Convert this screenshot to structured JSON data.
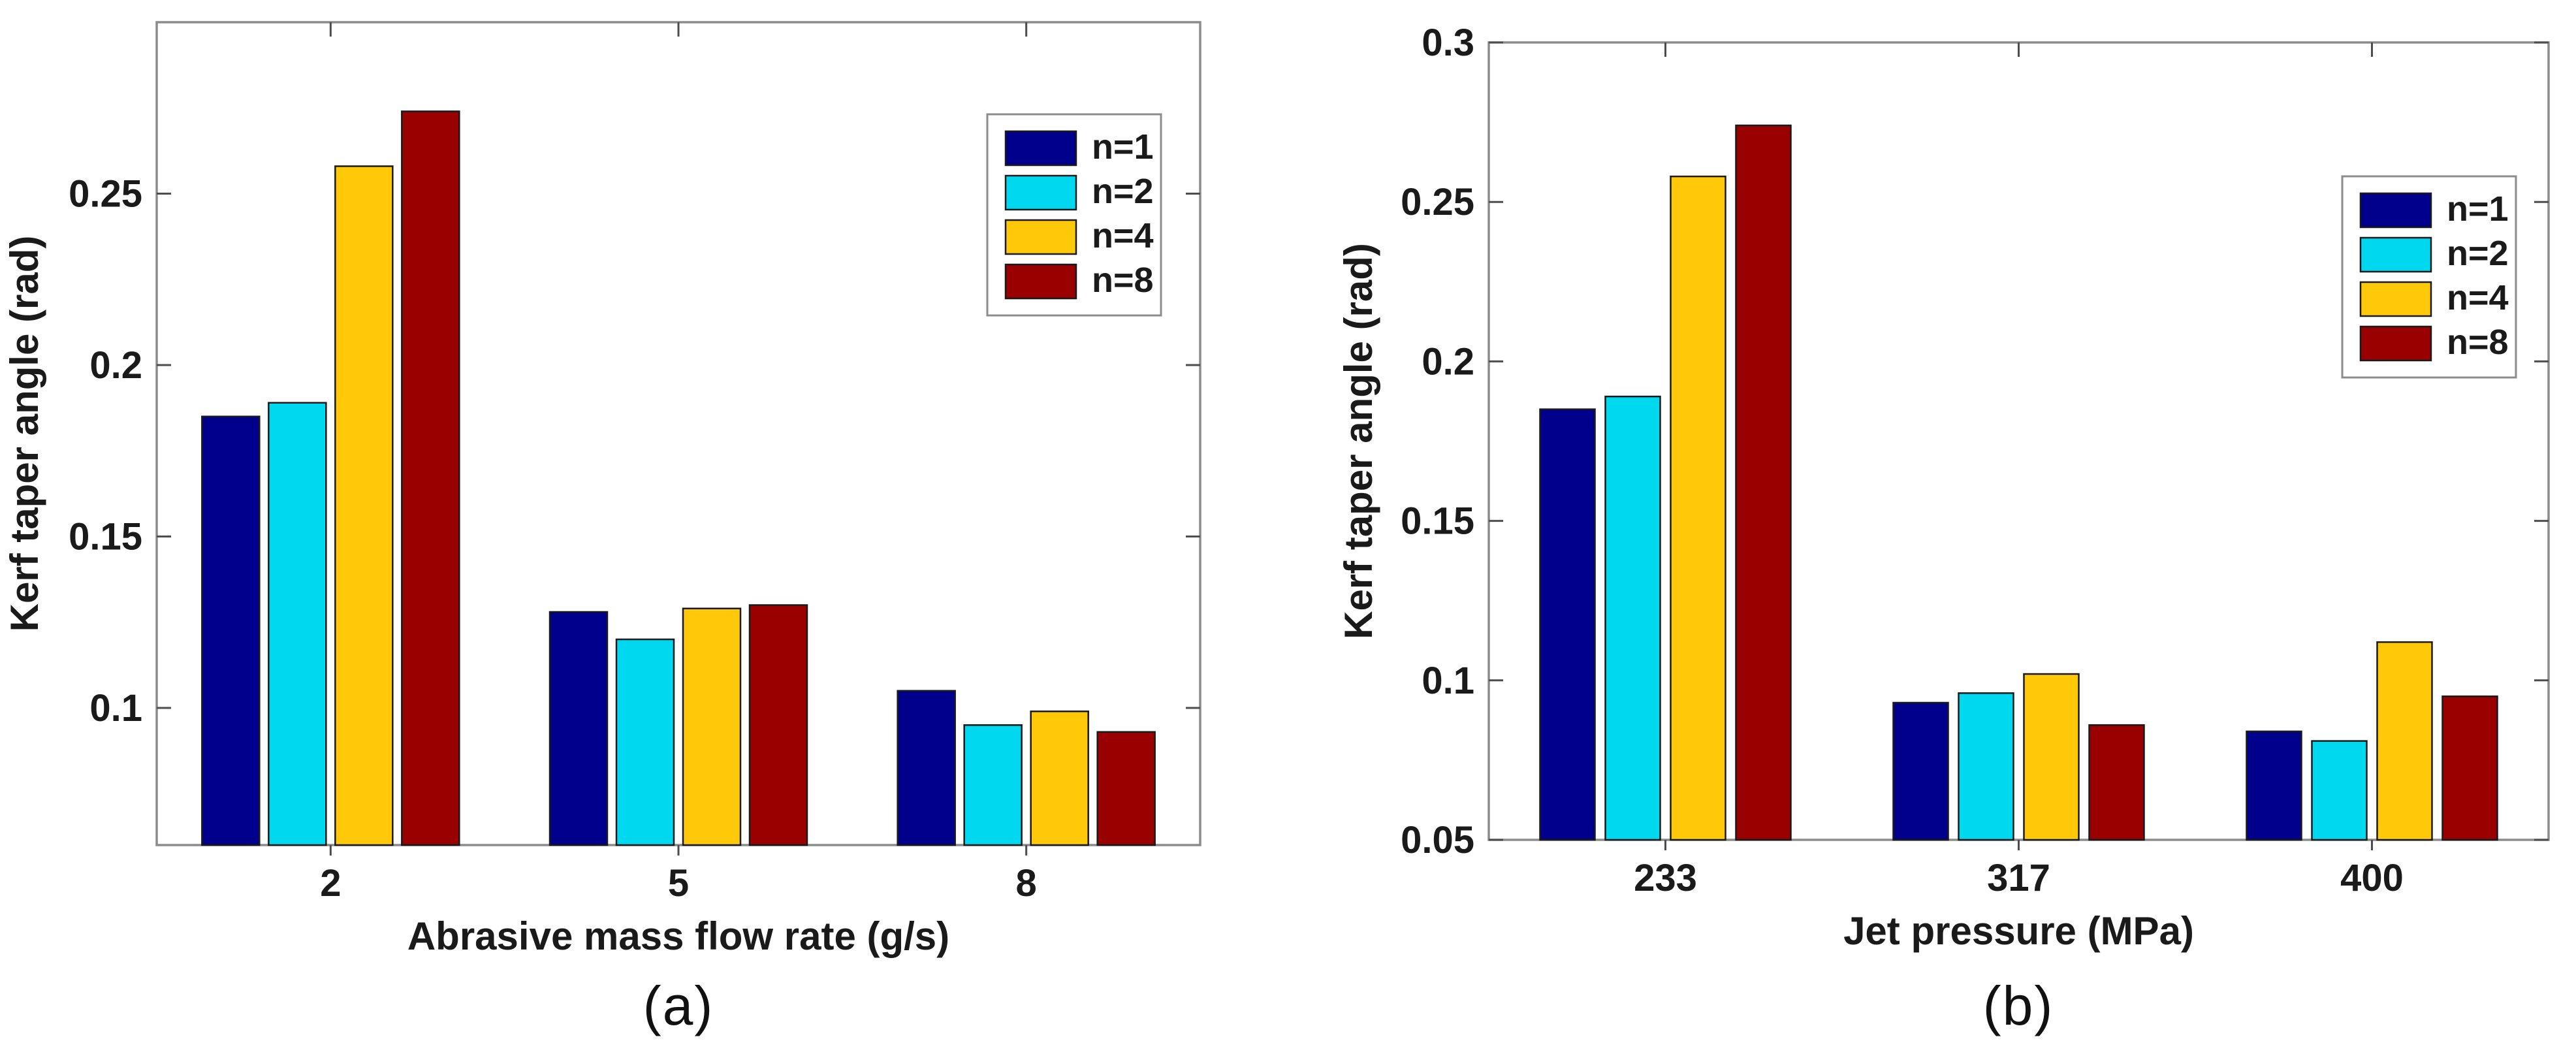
{
  "figure": {
    "background": "#ffffff",
    "frame_color": "#8C8C8C",
    "tick_color": "#4D4D4D",
    "text_color": "#1a1a1a"
  },
  "chart_data": [
    {
      "id": "a",
      "type": "bar",
      "caption": "(a)",
      "xlabel": "Abrasive mass flow rate (g/s)",
      "ylabel": "Kerf taper angle (rad)",
      "categories": [
        "2",
        "5",
        "8"
      ],
      "series": [
        {
          "name": "n=1",
          "color": "#00008C",
          "values": [
            0.185,
            0.128,
            0.105
          ]
        },
        {
          "name": "n=2",
          "color": "#00D8F0",
          "values": [
            0.189,
            0.12,
            0.095
          ]
        },
        {
          "name": "n=4",
          "color": "#FFC90A",
          "values": [
            0.258,
            0.129,
            0.099
          ]
        },
        {
          "name": "n=8",
          "color": "#990000",
          "values": [
            0.274,
            0.13,
            0.093
          ]
        }
      ],
      "ylim": [
        0.06,
        0.3
      ],
      "yticks": [
        {
          "value": 0.1,
          "label": "0.1"
        },
        {
          "value": 0.15,
          "label": "0.15"
        },
        {
          "value": 0.2,
          "label": "0.2"
        },
        {
          "value": 0.25,
          "label": "0.25"
        }
      ],
      "grid": "off",
      "legend": {
        "position": "upper-right",
        "labels": [
          "n=1",
          "n=2",
          "n=4",
          "n=8"
        ]
      }
    },
    {
      "id": "b",
      "type": "bar",
      "caption": "(b)",
      "xlabel": "Jet pressure (MPa)",
      "ylabel": "Kerf taper angle (rad)",
      "categories": [
        "233",
        "317",
        "400"
      ],
      "series": [
        {
          "name": "n=1",
          "color": "#00008C",
          "values": [
            0.185,
            0.093,
            0.084
          ]
        },
        {
          "name": "n=2",
          "color": "#00D8F0",
          "values": [
            0.189,
            0.096,
            0.081
          ]
        },
        {
          "name": "n=4",
          "color": "#FFC90A",
          "values": [
            0.258,
            0.102,
            0.112
          ]
        },
        {
          "name": "n=8",
          "color": "#990000",
          "values": [
            0.274,
            0.086,
            0.095
          ]
        }
      ],
      "ylim": [
        0.05,
        0.3
      ],
      "yticks": [
        {
          "value": 0.05,
          "label": "0.05"
        },
        {
          "value": 0.1,
          "label": "0.1"
        },
        {
          "value": 0.15,
          "label": "0.15"
        },
        {
          "value": 0.2,
          "label": "0.2"
        },
        {
          "value": 0.25,
          "label": "0.25"
        },
        {
          "value": 0.3,
          "label": "0.3"
        }
      ],
      "grid": "off",
      "legend": {
        "position": "upper-right",
        "labels": [
          "n=1",
          "n=2",
          "n=4",
          "n=8"
        ]
      }
    }
  ]
}
